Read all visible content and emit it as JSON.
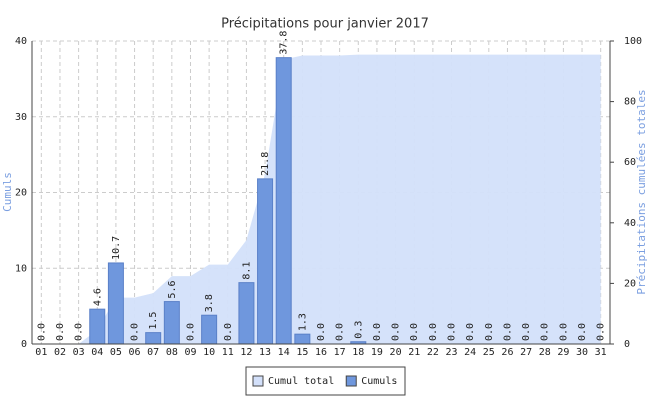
{
  "chart_data": {
    "type": "bar",
    "title": "Précipitations pour janvier 2017",
    "ylabel": "Cumuls",
    "y2label": "Précipitations cumulées totales",
    "categories": [
      "01",
      "02",
      "03",
      "04",
      "05",
      "06",
      "07",
      "08",
      "09",
      "10",
      "11",
      "12",
      "13",
      "14",
      "15",
      "16",
      "17",
      "18",
      "19",
      "20",
      "21",
      "22",
      "23",
      "24",
      "25",
      "26",
      "27",
      "28",
      "29",
      "30",
      "31"
    ],
    "series": [
      {
        "name": "Cumul total",
        "color": "#d3e0fa",
        "axis": "y2",
        "type": "area",
        "values": [
          0,
          0,
          0,
          4.6,
          15.3,
          15.3,
          16.8,
          22.4,
          22.4,
          26.2,
          26.2,
          34.3,
          56.1,
          93.9,
          95.2,
          95.2,
          95.2,
          95.5,
          95.5,
          95.5,
          95.5,
          95.5,
          95.5,
          95.5,
          95.5,
          95.5,
          95.5,
          95.5,
          95.5,
          95.5,
          95.5
        ]
      },
      {
        "name": "Cumuls",
        "color": "#6f97dd",
        "type": "bar",
        "values": [
          0,
          0,
          0,
          4.6,
          10.7,
          0,
          1.5,
          5.6,
          0,
          3.8,
          0,
          8.1,
          21.8,
          37.8,
          1.3,
          0,
          0,
          0.3,
          0,
          0,
          0,
          0,
          0,
          0,
          0,
          0,
          0,
          0,
          0,
          0,
          0
        ],
        "value_labels": [
          "0.0",
          "0.0",
          "0.0",
          "4.6",
          "10.7",
          "0.0",
          "1.5",
          "5.6",
          "0.0",
          "3.8",
          "0.0",
          "8.1",
          "21.8",
          "37.8",
          "1.3",
          "0.0",
          "0.0",
          "0.3",
          "0.0",
          "0.0",
          "0.0",
          "0.0",
          "0.0",
          "0.0",
          "0.0",
          "0.0",
          "0.0",
          "0.0",
          "0.0",
          "0.0",
          "0.0"
        ]
      }
    ],
    "ylim": [
      0,
      40
    ],
    "yticks": [
      0,
      10,
      20,
      30,
      40
    ],
    "y2lim": [
      0,
      100
    ],
    "y2ticks": [
      0,
      20,
      40,
      60,
      80,
      100
    ],
    "grid": true,
    "legend": "bottom"
  }
}
